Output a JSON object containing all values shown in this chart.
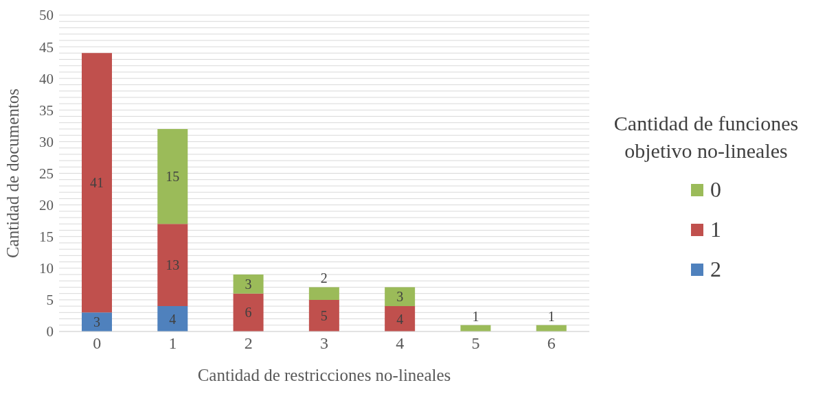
{
  "chart_data": {
    "type": "bar",
    "stacked": true,
    "xlabel": "Cantidad de restricciones no-lineales",
    "ylabel": "Cantidad de documentos",
    "legend_title": "Cantidad de funciones objetivo no-lineales",
    "categories": [
      "0",
      "1",
      "2",
      "3",
      "4",
      "5",
      "6"
    ],
    "series": [
      {
        "name": "2",
        "color": "#4f81bd",
        "values": [
          3,
          4,
          null,
          null,
          null,
          null,
          null
        ]
      },
      {
        "name": "1",
        "color": "#c0504d",
        "values": [
          41,
          13,
          6,
          5,
          4,
          null,
          null
        ]
      },
      {
        "name": "0",
        "color": "#9bbb59",
        "values": [
          null,
          15,
          3,
          2,
          3,
          1,
          1
        ]
      }
    ],
    "ylim": [
      0,
      50
    ],
    "yticks": [
      0,
      {
        "value": 1,
        "label": null
      },
      {
        "value": 2,
        "label": null
      },
      {
        "value": 3,
        "label": null
      },
      {
        "value": 4,
        "label": null
      },
      5,
      {
        "value": 6,
        "label": null
      },
      {
        "value": 7,
        "label": null
      },
      {
        "value": 8,
        "label": null
      },
      {
        "value": 9,
        "label": null
      },
      10,
      {
        "value": 11,
        "label": null
      },
      {
        "value": 12,
        "label": null
      },
      {
        "value": 13,
        "label": null
      },
      {
        "value": 14,
        "label": null
      },
      15,
      {
        "value": 16,
        "label": null
      },
      {
        "value": 17,
        "label": null
      },
      {
        "value": 18,
        "label": null
      },
      {
        "value": 19,
        "label": null
      },
      20,
      {
        "value": 21,
        "label": null
      },
      {
        "value": 22,
        "label": null
      },
      {
        "value": 23,
        "label": null
      },
      {
        "value": 24,
        "label": null
      },
      25,
      {
        "value": 26,
        "label": null
      },
      {
        "value": 27,
        "label": null
      },
      {
        "value": 28,
        "label": null
      },
      {
        "value": 29,
        "label": null
      },
      30,
      {
        "value": 31,
        "label": null
      },
      {
        "value": 32,
        "label": null
      },
      {
        "value": 33,
        "label": null
      },
      {
        "value": 34,
        "label": null
      },
      35,
      {
        "value": 36,
        "label": null
      },
      {
        "value": 37,
        "label": null
      },
      {
        "value": 38,
        "label": null
      },
      {
        "value": 39,
        "label": null
      },
      40,
      {
        "value": 41,
        "label": null
      },
      {
        "value": 42,
        "label": null
      },
      {
        "value": 43,
        "label": null
      },
      {
        "value": 44,
        "label": null
      },
      45,
      {
        "value": 46,
        "label": null
      },
      {
        "value": 47,
        "label": null
      },
      {
        "value": 48,
        "label": null
      },
      {
        "value": 49,
        "label": null
      },
      50
    ],
    "grid": "y",
    "legend": "right",
    "data_labels": true
  }
}
